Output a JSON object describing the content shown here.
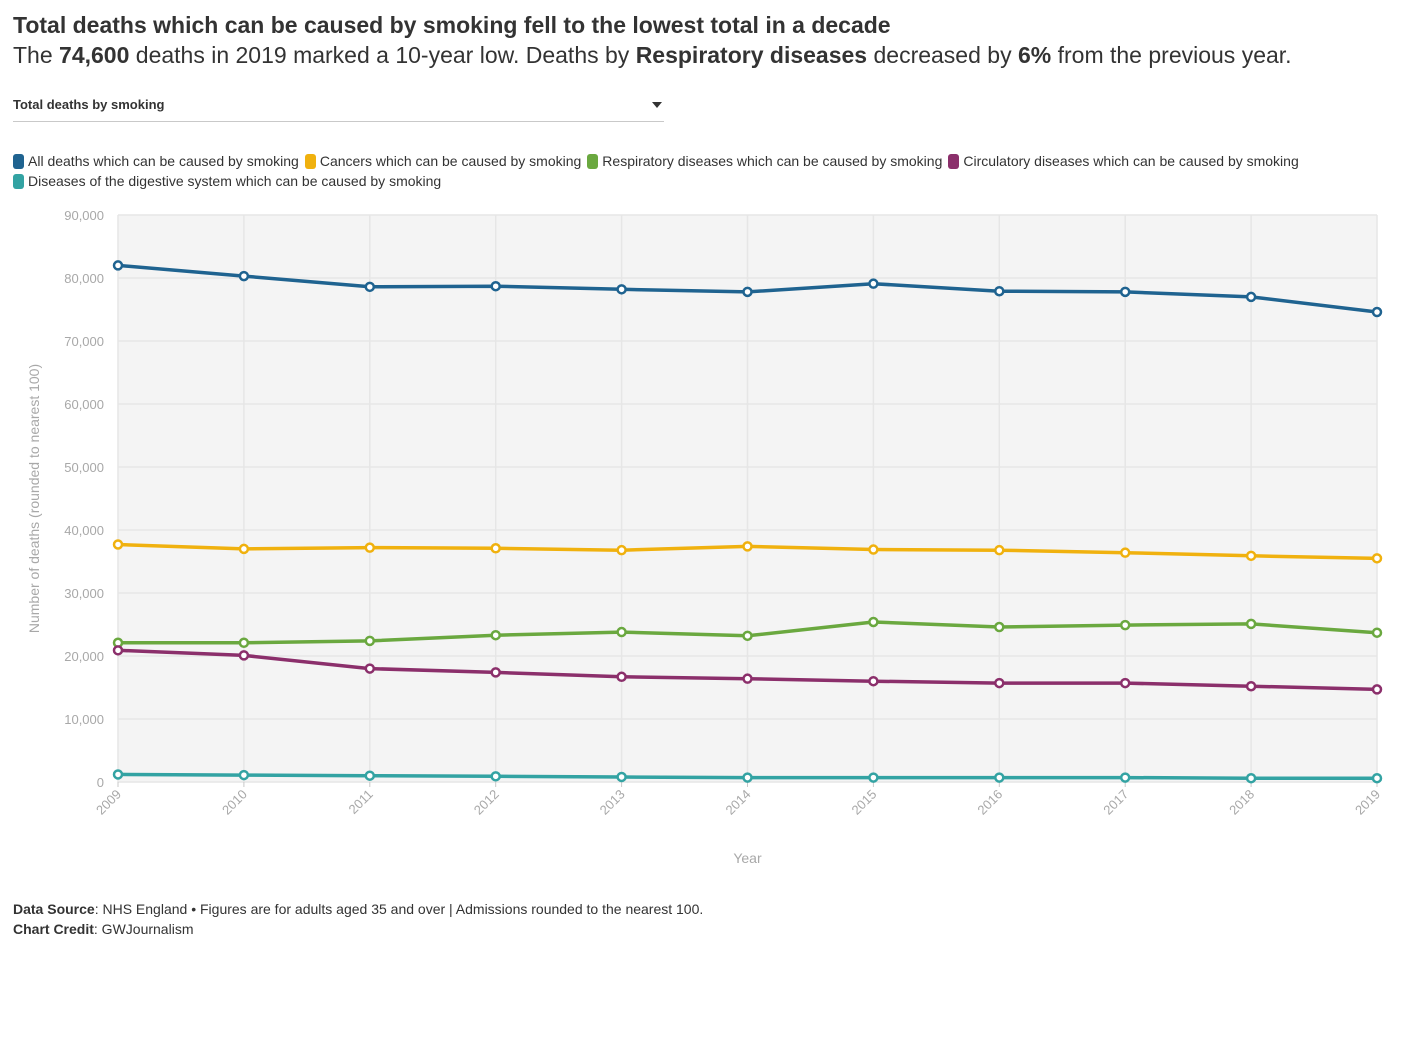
{
  "header": {
    "title": "Total deaths which can be caused by smoking fell to the lowest total in a decade",
    "subtitle": {
      "p1": "The ",
      "b1": "74,600",
      "p2": " deaths in 2019 marked a 10-year low. Deaths by ",
      "b2": "Respiratory diseases",
      "p3": " decreased by ",
      "b3": "6%",
      "p4": " from the previous year."
    }
  },
  "dropdown": {
    "selected": "Total deaths by smoking"
  },
  "footer": {
    "source_label": "Data Source",
    "source_text": ": NHS England • Figures are for adults aged 35 and over | Admissions rounded to the nearest 100.",
    "credit_label": "Chart Credit",
    "credit_text": ": GWJournalism"
  },
  "chart_data": {
    "type": "line",
    "xlabel": "Year",
    "ylabel": "Number of deaths (rounded to nearest 100)",
    "x": [
      "2009",
      "2010",
      "2011",
      "2012",
      "2013",
      "2014",
      "2015",
      "2016",
      "2017",
      "2018",
      "2019"
    ],
    "ylim": [
      0,
      90000
    ],
    "yticks": [
      0,
      10000,
      20000,
      30000,
      40000,
      50000,
      60000,
      70000,
      80000,
      90000
    ],
    "ytick_labels": [
      "0",
      "10,000",
      "20,000",
      "30,000",
      "40,000",
      "50,000",
      "60,000",
      "70,000",
      "80,000",
      "90,000"
    ],
    "grid": true,
    "legend_position": "top",
    "series": [
      {
        "name": "All deaths which can be caused by smoking",
        "color": "#1f6390",
        "values": [
          82000,
          80300,
          78600,
          78700,
          78200,
          77800,
          79100,
          77900,
          77800,
          77000,
          74600
        ]
      },
      {
        "name": "Cancers which can be caused by smoking",
        "color": "#f0b10e",
        "values": [
          37700,
          37000,
          37200,
          37100,
          36800,
          37400,
          36900,
          36800,
          36400,
          35900,
          35500
        ]
      },
      {
        "name": "Respiratory diseases which can be caused by smoking",
        "color": "#6aa83f",
        "values": [
          22100,
          22100,
          22400,
          23300,
          23800,
          23200,
          25400,
          24600,
          24900,
          25100,
          23700
        ]
      },
      {
        "name": "Circulatory diseases which can be caused by smoking",
        "color": "#8b2f6b",
        "values": [
          20900,
          20100,
          18000,
          17400,
          16700,
          16400,
          16000,
          15700,
          15700,
          15200,
          14700
        ]
      },
      {
        "name": "Diseases of the digestive system which can be caused by smoking",
        "color": "#33a3a3",
        "values": [
          1200,
          1100,
          1000,
          900,
          800,
          700,
          700,
          700,
          700,
          600,
          600
        ]
      }
    ]
  }
}
